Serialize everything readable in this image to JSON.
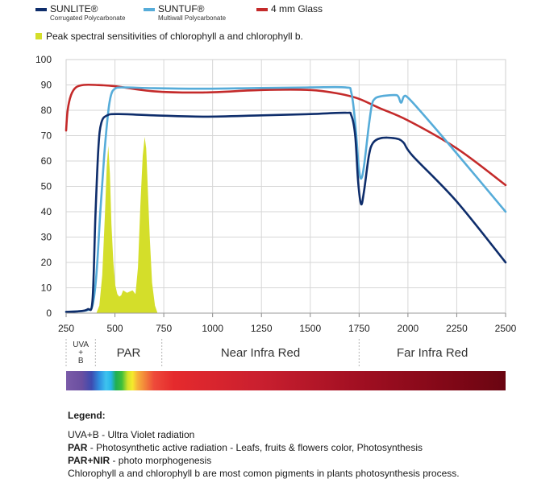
{
  "legend_top": {
    "sunlite": {
      "name": "SUNLITE®",
      "sub": "Corrugated Polycarbonate",
      "color": "#0e2d6b"
    },
    "suntuf": {
      "name": "SUNTUF®",
      "sub": "Multiwall Polycarbonate",
      "color": "#56acd9"
    },
    "glass": {
      "name": "4 mm Glass",
      "color": "#c42a2a"
    },
    "chlorophyll": {
      "text": "Peak spectral sensitivities of chlorophyll a and chlorophyll b.",
      "color": "#d4de2a"
    }
  },
  "chart_data": {
    "type": "line",
    "xlim": [
      250,
      2500
    ],
    "ylim": [
      0,
      100
    ],
    "x_ticks": [
      250,
      500,
      750,
      1000,
      1250,
      1500,
      1750,
      2000,
      2250,
      2500
    ],
    "y_ticks": [
      0,
      10,
      20,
      30,
      40,
      50,
      60,
      70,
      80,
      90,
      100
    ],
    "grid": true,
    "series": [
      {
        "name": "SUNLITE® Corrugated Polycarbonate",
        "color": "#0e2d6b",
        "points": [
          [
            250,
            0.5
          ],
          [
            310,
            0.7
          ],
          [
            360,
            1.5
          ],
          [
            385,
            5
          ],
          [
            400,
            38
          ],
          [
            415,
            65
          ],
          [
            430,
            75
          ],
          [
            460,
            78
          ],
          [
            520,
            78.5
          ],
          [
            700,
            78
          ],
          [
            950,
            77.5
          ],
          [
            1250,
            78
          ],
          [
            1500,
            78.5
          ],
          [
            1680,
            79
          ],
          [
            1710,
            78
          ],
          [
            1730,
            70
          ],
          [
            1745,
            52
          ],
          [
            1760,
            43
          ],
          [
            1775,
            48
          ],
          [
            1800,
            62
          ],
          [
            1820,
            67
          ],
          [
            1860,
            69
          ],
          [
            1930,
            69
          ],
          [
            1975,
            67.5
          ],
          [
            2025,
            62
          ],
          [
            2250,
            44
          ],
          [
            2500,
            20
          ]
        ]
      },
      {
        "name": "SUNTUF® Multiwall Polycarbonate",
        "color": "#56acd9",
        "points": [
          [
            250,
            0.5
          ],
          [
            310,
            0.7
          ],
          [
            360,
            1.2
          ],
          [
            385,
            3
          ],
          [
            405,
            15
          ],
          [
            425,
            40
          ],
          [
            445,
            62
          ],
          [
            465,
            79
          ],
          [
            480,
            86
          ],
          [
            500,
            88.5
          ],
          [
            540,
            89
          ],
          [
            700,
            88.7
          ],
          [
            950,
            88.5
          ],
          [
            1250,
            88.8
          ],
          [
            1500,
            89
          ],
          [
            1680,
            89
          ],
          [
            1710,
            87
          ],
          [
            1730,
            75
          ],
          [
            1748,
            58
          ],
          [
            1760,
            53
          ],
          [
            1775,
            58
          ],
          [
            1800,
            74
          ],
          [
            1815,
            82
          ],
          [
            1830,
            84.5
          ],
          [
            1860,
            85.5
          ],
          [
            1930,
            86
          ],
          [
            1950,
            85.5
          ],
          [
            1965,
            83
          ],
          [
            1980,
            85.5
          ],
          [
            2000,
            85
          ],
          [
            2060,
            80
          ],
          [
            2250,
            63
          ],
          [
            2500,
            40
          ]
        ]
      },
      {
        "name": "4 mm Glass",
        "color": "#c42a2a",
        "points": [
          [
            250,
            72
          ],
          [
            258,
            80
          ],
          [
            275,
            86
          ],
          [
            300,
            89
          ],
          [
            340,
            90
          ],
          [
            400,
            90
          ],
          [
            500,
            89.5
          ],
          [
            700,
            87.5
          ],
          [
            950,
            87
          ],
          [
            1250,
            88
          ],
          [
            1500,
            88
          ],
          [
            1650,
            86.5
          ],
          [
            1750,
            84.5
          ],
          [
            1850,
            81
          ],
          [
            2000,
            76
          ],
          [
            2250,
            65
          ],
          [
            2500,
            50.5
          ]
        ]
      }
    ],
    "chlorophyll_area": {
      "name": "Peak spectral sensitivities of chlorophyll a and chlorophyll b.",
      "color": "#d4de2a",
      "points": [
        [
          405,
          0
        ],
        [
          420,
          3
        ],
        [
          435,
          15
        ],
        [
          448,
          38
        ],
        [
          458,
          58
        ],
        [
          466,
          66
        ],
        [
          474,
          55
        ],
        [
          482,
          35
        ],
        [
          492,
          20
        ],
        [
          502,
          11
        ],
        [
          512,
          7.5
        ],
        [
          522,
          6.5
        ],
        [
          532,
          7
        ],
        [
          542,
          9
        ],
        [
          552,
          8.5
        ],
        [
          562,
          8
        ],
        [
          575,
          8.5
        ],
        [
          590,
          9
        ],
        [
          605,
          7.5
        ],
        [
          618,
          18
        ],
        [
          630,
          42
        ],
        [
          642,
          62
        ],
        [
          652,
          69.5
        ],
        [
          660,
          65
        ],
        [
          668,
          50
        ],
        [
          678,
          30
        ],
        [
          690,
          12
        ],
        [
          705,
          3
        ],
        [
          718,
          0
        ]
      ]
    },
    "regions": [
      {
        "label": "UVA\n+\nB",
        "from": 250,
        "to": 400
      },
      {
        "label": "PAR",
        "from": 400,
        "to": 740
      },
      {
        "label": "Near Infra Red",
        "from": 740,
        "to": 1750
      },
      {
        "label": "Far Infra Red",
        "from": 1750,
        "to": 2500
      }
    ],
    "spectrum_stops": [
      {
        "x": 250,
        "color": "#7a5ba8"
      },
      {
        "x": 330,
        "color": "#6b4fa0"
      },
      {
        "x": 380,
        "color": "#3d4bb0"
      },
      {
        "x": 420,
        "color": "#2f8fe0"
      },
      {
        "x": 455,
        "color": "#3ec3ef"
      },
      {
        "x": 480,
        "color": "#28b6e8"
      },
      {
        "x": 505,
        "color": "#1fae55"
      },
      {
        "x": 535,
        "color": "#3fbf3a"
      },
      {
        "x": 565,
        "color": "#cfe22a"
      },
      {
        "x": 590,
        "color": "#f6ea2c"
      },
      {
        "x": 615,
        "color": "#f6b33a"
      },
      {
        "x": 655,
        "color": "#f2823a"
      },
      {
        "x": 700,
        "color": "#ee4a3a"
      },
      {
        "x": 800,
        "color": "#e52a2d"
      },
      {
        "x": 1250,
        "color": "#c91f2f"
      },
      {
        "x": 1750,
        "color": "#a10f22"
      },
      {
        "x": 2250,
        "color": "#7e0716"
      },
      {
        "x": 2500,
        "color": "#6a0511"
      }
    ]
  },
  "legend_bottom": {
    "title": "Legend:",
    "lines": [
      {
        "term": "UVA+B",
        "desc": " - Ultra Violet radiation"
      },
      {
        "term": "PAR",
        "desc": " - Photosynthetic active radiation - Leafs, fruits & flowers color, Photosynthesis"
      },
      {
        "term": "PAR+NIR",
        "desc": " -  photo morphogenesis"
      }
    ],
    "note": "Chlorophyll a and chlorophyll b are most comon pigments in plants photosynthesis process."
  }
}
